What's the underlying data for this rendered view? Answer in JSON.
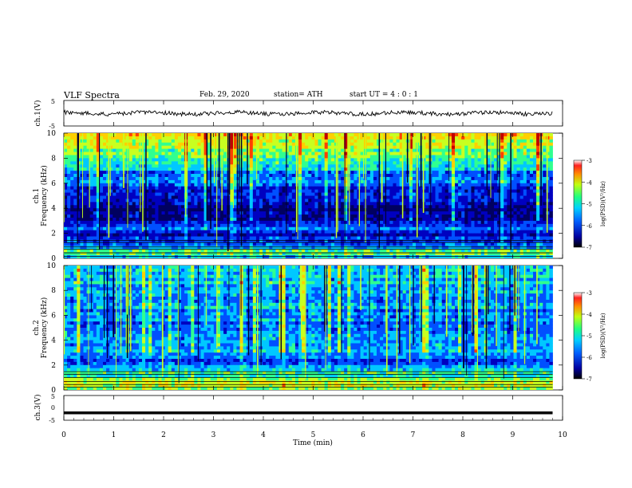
{
  "header": {
    "title": "VLF Spectra",
    "date": "Feb. 29, 2020",
    "station": "station= ATH",
    "start": "start UT = 4 : 0 : 1"
  },
  "colors": {
    "spectrum": [
      "#000060",
      "#0000c0",
      "#0050ff",
      "#00c8ff",
      "#30ff90",
      "#c8ff20",
      "#ffd000",
      "#ff4000",
      "#c00000"
    ],
    "trace": "#000000"
  },
  "chart_data": [
    {
      "type": "line",
      "name": "ch1-waveform",
      "ylabel": "ch.1(V)",
      "yticks": [
        "5",
        "-5"
      ],
      "ylim": [
        -5,
        5
      ],
      "xlim": [
        0,
        10
      ],
      "data_end_min": 9.8,
      "description_values": "noisy trace around 0 V with small fluctuations"
    },
    {
      "type": "heatmap",
      "name": "ch1-spectrogram",
      "ylabel": [
        "ch.1",
        "Frequency (kHz)"
      ],
      "yticks": [
        "0",
        "2",
        "4",
        "6",
        "8",
        "10"
      ],
      "ylim": [
        0,
        10
      ],
      "xlim": [
        0,
        10
      ],
      "data_end_min": 9.8,
      "colorbar": {
        "label": "log(PSD)(V²/Hz)",
        "ticks": [
          "-3",
          "-4",
          "-5",
          "-6",
          "-7"
        ],
        "range": [
          -7,
          -3
        ]
      },
      "band_profile_khz": [
        [
          0,
          -5.5
        ],
        [
          0.5,
          -4.8
        ],
        [
          1,
          -5.8
        ],
        [
          1.5,
          -6.0
        ],
        [
          2.0,
          -6.3
        ],
        [
          2.5,
          -5.8
        ],
        [
          3,
          -6.4
        ],
        [
          4,
          -6.6
        ],
        [
          5,
          -6.1
        ],
        [
          6,
          -5.9
        ],
        [
          7,
          -5.6
        ],
        [
          8,
          -5.0
        ],
        [
          9,
          -4.6
        ],
        [
          10,
          -4.4
        ]
      ]
    },
    {
      "type": "heatmap",
      "name": "ch2-spectrogram",
      "ylabel": [
        "ch.2",
        "Frequency (kHz)"
      ],
      "yticks": [
        "0",
        "2",
        "4",
        "6",
        "8",
        "10"
      ],
      "ylim": [
        0,
        10
      ],
      "xlim": [
        0,
        10
      ],
      "data_end_min": 9.8,
      "colorbar": {
        "label": "log(PSD)(V²/Hz)",
        "ticks": [
          "-3",
          "-4",
          "-5",
          "-6",
          "-7"
        ],
        "range": [
          -7,
          -3
        ]
      },
      "band_profile_khz": [
        [
          0,
          -4.9
        ],
        [
          0.5,
          -4.6
        ],
        [
          1,
          -4.9
        ],
        [
          1.5,
          -5.3
        ],
        [
          2.0,
          -5.6
        ],
        [
          2.5,
          -6.1
        ],
        [
          3,
          -5.4
        ],
        [
          4,
          -5.8
        ],
        [
          5,
          -5.7
        ],
        [
          6,
          -5.8
        ],
        [
          7,
          -5.5
        ],
        [
          8,
          -5.6
        ],
        [
          9,
          -5.4
        ],
        [
          10,
          -5.3
        ]
      ]
    },
    {
      "type": "line",
      "name": "ch3-waveform",
      "ylabel": "ch.3(V)",
      "yticks": [
        "5",
        "0",
        "-5"
      ],
      "ylim": [
        -5,
        5
      ],
      "xlim": [
        0,
        10
      ],
      "data_end_min": 9.8,
      "level_v": -2.0
    }
  ],
  "xaxis": {
    "label": "Time (min)",
    "ticks": [
      "0",
      "1",
      "2",
      "3",
      "4",
      "5",
      "6",
      "7",
      "8",
      "9",
      "10"
    ]
  }
}
